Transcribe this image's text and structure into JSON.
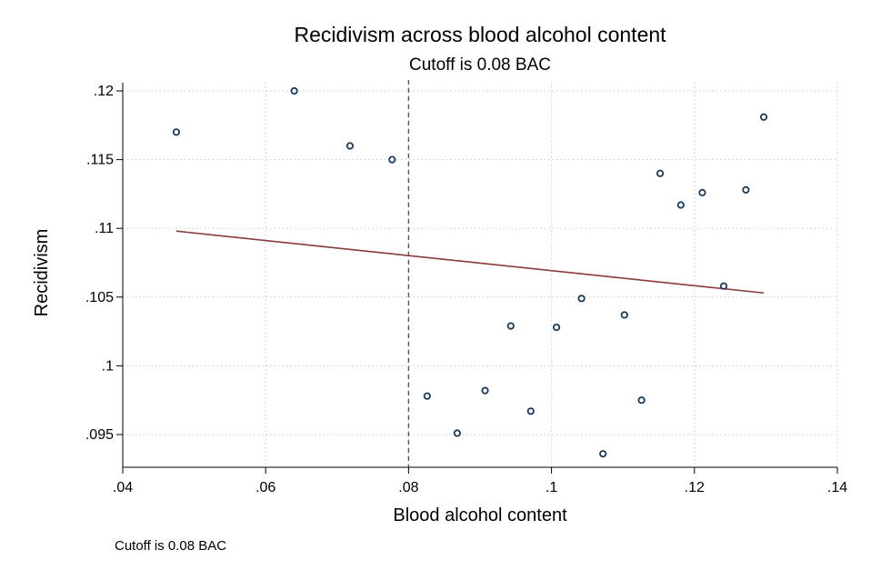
{
  "chart_data": {
    "type": "scatter",
    "title": "Recidivism across blood alcohol content",
    "subtitle": "Cutoff is 0.08 BAC",
    "xlabel": "Blood alcohol content",
    "ylabel": "Recidivism",
    "xlim": [
      0.04,
      0.14
    ],
    "ylim": [
      0.093,
      0.12
    ],
    "x_ticks": [
      ".04",
      ".06",
      ".08",
      ".1",
      ".12",
      ".14"
    ],
    "x_tick_values": [
      0.04,
      0.06,
      0.08,
      0.1,
      0.12,
      0.14
    ],
    "y_ticks": [
      ".095",
      ".1",
      ".105",
      ".11",
      ".115",
      ".12"
    ],
    "y_tick_values": [
      0.095,
      0.1,
      0.105,
      0.11,
      0.115,
      0.12
    ],
    "grid": true,
    "cutoff_x": 0.08,
    "points": [
      {
        "x": 0.0475,
        "y": 0.117
      },
      {
        "x": 0.064,
        "y": 0.12
      },
      {
        "x": 0.0718,
        "y": 0.116
      },
      {
        "x": 0.0777,
        "y": 0.115
      },
      {
        "x": 0.0826,
        "y": 0.0978
      },
      {
        "x": 0.0868,
        "y": 0.0951
      },
      {
        "x": 0.0907,
        "y": 0.0982
      },
      {
        "x": 0.0943,
        "y": 0.1029
      },
      {
        "x": 0.0971,
        "y": 0.0967
      },
      {
        "x": 0.1007,
        "y": 0.1028
      },
      {
        "x": 0.1042,
        "y": 0.1049
      },
      {
        "x": 0.1072,
        "y": 0.0936
      },
      {
        "x": 0.1102,
        "y": 0.1037
      },
      {
        "x": 0.1126,
        "y": 0.0975
      },
      {
        "x": 0.1152,
        "y": 0.114
      },
      {
        "x": 0.1181,
        "y": 0.1117
      },
      {
        "x": 0.1211,
        "y": 0.1126
      },
      {
        "x": 0.1241,
        "y": 0.1058
      },
      {
        "x": 0.1272,
        "y": 0.1128
      },
      {
        "x": 0.1297,
        "y": 0.1181
      }
    ],
    "fit_line": [
      {
        "x": 0.0475,
        "y": 0.1098
      },
      {
        "x": 0.1297,
        "y": 0.1053
      }
    ],
    "colors": {
      "marker": "#1a3a5c",
      "fit": "#8b3a3a",
      "grid": "#c8c8c8",
      "cutoff": "#555555"
    }
  },
  "footnote": "Cutoff is 0.08 BAC"
}
